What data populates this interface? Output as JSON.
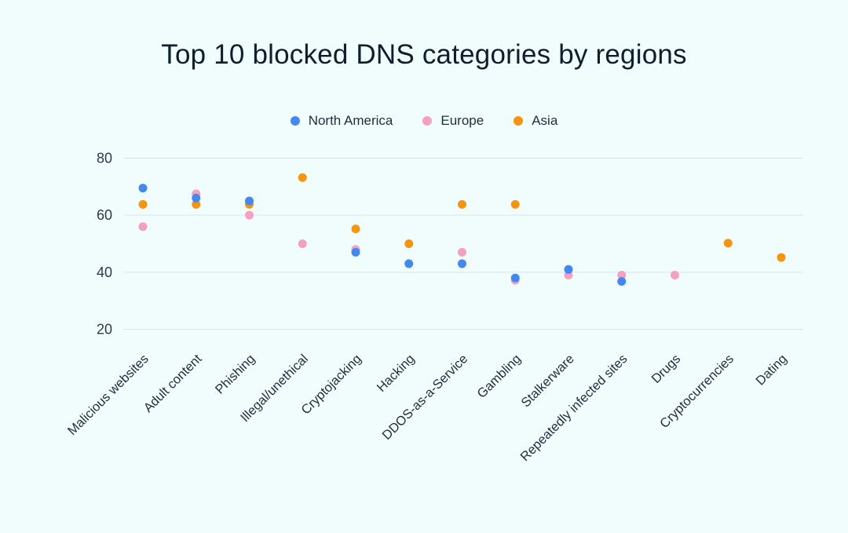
{
  "chart_data": {
    "type": "scatter",
    "title": "Top 10 blocked DNS categories by regions",
    "categories": [
      "Malicious websites",
      "Adult content",
      "Phishing",
      "Illegal/unethical",
      "Cryptojacking",
      "Hacking",
      "DDOS-as-a-Service",
      "Gambling",
      "Stalkerware",
      "Repeatedly infected sites",
      "Drugs",
      "Cryptocurrencies",
      "Dating"
    ],
    "yticks": [
      20,
      40,
      60,
      80
    ],
    "ylim": [
      14,
      82
    ],
    "grid": true,
    "legend_position": "top-center",
    "series": [
      {
        "name": "North America",
        "color": "#4388ef",
        "values": [
          69.5,
          66,
          65,
          null,
          47,
          43,
          43,
          38,
          41,
          36.8,
          null,
          null,
          null
        ]
      },
      {
        "name": "Europe",
        "color": "#f3a0c4",
        "values": [
          56,
          67.5,
          60,
          50,
          48,
          null,
          47,
          37.2,
          39,
          39,
          39,
          null,
          null
        ]
      },
      {
        "name": "Asia",
        "color": "#f6930f",
        "values": [
          63.8,
          63.8,
          63.8,
          73.2,
          55.2,
          50,
          63.8,
          63.8,
          null,
          null,
          null,
          50.2,
          45.2
        ]
      }
    ]
  }
}
